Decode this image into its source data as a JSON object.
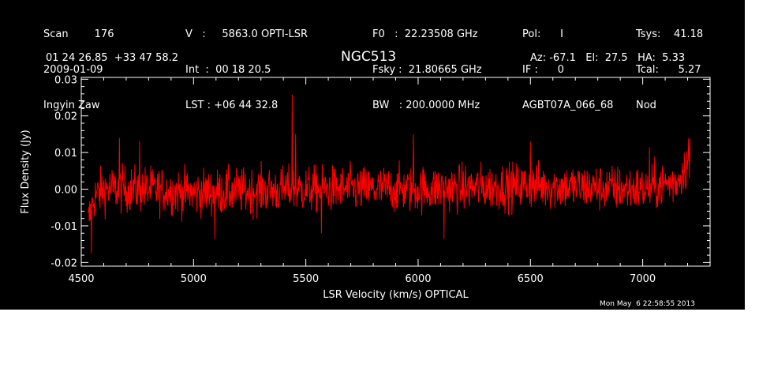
{
  "header": {
    "col1": [
      "Scan        176",
      "2009-01-09",
      "Ingyin Zaw"
    ],
    "col2": [
      "V   :     5863.0 OPTI-LSR",
      "Int  :  00 18 20.5",
      "LST : +06 44 32.8"
    ],
    "col3": [
      "F0   :  22.23508 GHz",
      "Fsky :  21.80665 GHz",
      "BW   : 200.0000 MHz"
    ],
    "col4": [
      "Pol:      I",
      "IF :      0",
      "AGBT07A_066_68"
    ],
    "col5": [
      "Tsys:    41.18",
      "Tcal:      5.27",
      "Nod"
    ],
    "coords": "01 24 26.85  +33 47 58.2",
    "source": "NGC513",
    "azel": "Az: -67.1   El:  27.5   HA:  5.33",
    "timestamp": "Mon May  6 22:58:55 2013"
  },
  "colors": {
    "background": "#000000",
    "axes": "#ffffff",
    "series": "#ff0000"
  },
  "chart_data": {
    "type": "line",
    "xlabel": "LSR Velocity (km/s) OPTICAL",
    "ylabel": "Flux Density (Jy)",
    "xlim": [
      4500,
      7300
    ],
    "ylim": [
      -0.021,
      0.0305
    ],
    "xticks": [
      4500,
      5000,
      5500,
      6000,
      6500,
      7000
    ],
    "xtick_labels": [
      "4500",
      "5000",
      "5500",
      "6000",
      "6500",
      "7000"
    ],
    "yticks": [
      -0.02,
      -0.01,
      0.0,
      0.01,
      0.02,
      0.03
    ],
    "ytick_labels": [
      "-0.02",
      "-0.01",
      "0.00",
      "0.01",
      "0.02",
      "0.03"
    ],
    "series": [
      {
        "x_range": [
          4530,
          7210
        ],
        "noise_rms": 0.0045,
        "profile": [
          [
            4530,
            -0.009
          ],
          [
            4560,
            -0.002
          ],
          [
            4600,
            0.0
          ],
          [
            4800,
            0.0
          ],
          [
            5000,
            -0.001
          ],
          [
            5500,
            0.0
          ],
          [
            6000,
            0.0
          ],
          [
            6500,
            0.001
          ],
          [
            7000,
            0.0
          ],
          [
            7150,
            0.002
          ],
          [
            7210,
            0.008
          ]
        ],
        "peaks": [
          [
            4545,
            -0.0175
          ],
          [
            4670,
            0.014
          ],
          [
            4760,
            0.013
          ],
          [
            5095,
            -0.0135
          ],
          [
            5440,
            0.0258
          ],
          [
            5455,
            0.015
          ],
          [
            5570,
            -0.012
          ],
          [
            5980,
            0.015
          ],
          [
            6115,
            -0.0135
          ],
          [
            6500,
            0.013
          ],
          [
            7030,
            0.0115
          ],
          [
            7205,
            0.0138
          ]
        ]
      }
    ]
  }
}
